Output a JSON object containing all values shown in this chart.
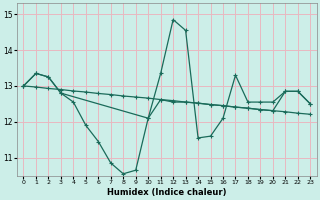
{
  "xlabel": "Humidex (Indice chaleur)",
  "bg_color": "#cceee8",
  "grid_color": "#e8b8c0",
  "line_color": "#1a6b5a",
  "xlim": [
    -0.5,
    23.5
  ],
  "ylim": [
    10.5,
    15.3
  ],
  "yticks": [
    11,
    12,
    13,
    14,
    15
  ],
  "xticks": [
    0,
    1,
    2,
    3,
    4,
    5,
    6,
    7,
    8,
    9,
    10,
    11,
    12,
    13,
    14,
    15,
    16,
    17,
    18,
    19,
    20,
    21,
    22,
    23
  ],
  "line1_x": [
    0,
    1,
    2,
    3,
    4,
    5,
    6,
    7,
    8,
    9,
    10,
    11,
    12,
    13,
    14,
    15,
    16,
    17,
    18,
    19,
    20,
    21,
    22,
    23
  ],
  "line1_y": [
    13.0,
    13.35,
    13.25,
    12.8,
    12.55,
    11.9,
    11.45,
    10.85,
    10.55,
    10.65,
    12.1,
    13.35,
    14.85,
    14.55,
    11.55,
    11.6,
    12.1,
    13.3,
    12.55,
    12.55,
    12.55,
    12.85,
    12.85,
    12.5
  ],
  "line2_x": [
    0,
    1,
    2,
    3,
    4,
    5,
    6,
    7,
    8,
    9,
    10,
    11,
    12,
    13,
    14,
    15,
    16,
    17,
    18,
    19,
    20,
    21,
    22,
    23
  ],
  "line2_y": [
    13.0,
    12.97,
    12.93,
    12.9,
    12.86,
    12.83,
    12.79,
    12.76,
    12.72,
    12.69,
    12.66,
    12.62,
    12.59,
    12.55,
    12.52,
    12.48,
    12.45,
    12.41,
    12.38,
    12.34,
    12.31,
    12.28,
    12.24,
    12.21
  ],
  "line3_x": [
    0,
    1,
    2,
    3,
    10,
    11,
    12,
    13,
    14,
    15,
    16,
    17,
    18,
    19,
    20,
    21,
    22,
    23
  ],
  "line3_y": [
    13.0,
    13.35,
    13.25,
    12.8,
    12.1,
    12.62,
    12.55,
    12.55,
    12.52,
    12.48,
    12.45,
    12.41,
    12.38,
    12.34,
    12.31,
    12.85,
    12.85,
    12.5
  ]
}
